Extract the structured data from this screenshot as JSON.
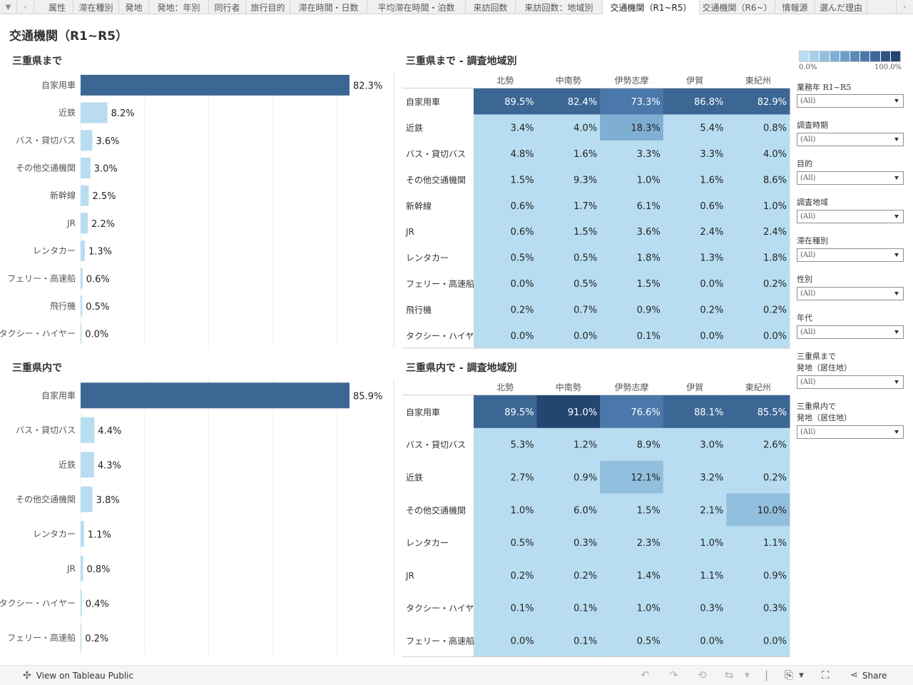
{
  "tabs": [
    "属性",
    "滞在種別",
    "発地",
    "発地：年別",
    "同行者",
    "旅行目的",
    "滞在時間・日数",
    "平均滞在時間・泊数",
    "来訪回数",
    "来訪回数：地域別",
    "交通機関（R1~R5）",
    "交通機関（R6~）",
    "情報源",
    "選んだ理由"
  ],
  "active_tab": 10,
  "page_title": "交通機関（R1~R5）",
  "colors": {
    "bar_high": "#3c6794",
    "bar_low": "#b8ddf1",
    "gradient": [
      "#b8ddf1",
      "#a6cfe7",
      "#92bfdd",
      "#7faed3",
      "#6c9cc7",
      "#5a8aba",
      "#4a78ab",
      "#3c6794",
      "#2e5482",
      "#234570"
    ]
  },
  "legend": {
    "min_label": "0.0%",
    "max_label": "100.0%"
  },
  "filters": [
    {
      "label": "業務年  R1~R5",
      "value": "(All)"
    },
    {
      "label": "調査時期",
      "value": "(All)"
    },
    {
      "label": "目的",
      "value": "(All)"
    },
    {
      "label": "調査地域",
      "value": "(All)"
    },
    {
      "label": "滞在種別",
      "value": "(All)"
    },
    {
      "label": "性別",
      "value": "(All)"
    },
    {
      "label": "年代",
      "value": "(All)"
    },
    {
      "label": "三重県まで\n発地（居住地）",
      "value": "(All)"
    },
    {
      "label": "三重県内で\n発地（居住地）",
      "value": "(All)"
    }
  ],
  "footer": {
    "tableau_link": "View on Tableau Public",
    "share": "Share"
  },
  "chart_data": [
    {
      "type": "bar",
      "title": "三重県まで",
      "categories": [
        "自家用車",
        "近鉄",
        "バス・貸切バス",
        "その他交通機関",
        "新幹線",
        "JR",
        "レンタカー",
        "フェリー・高速船",
        "飛行機",
        "タクシー・ハイヤー"
      ],
      "values": [
        82.3,
        8.2,
        3.6,
        3.0,
        2.5,
        2.2,
        1.3,
        0.6,
        0.5,
        0.0
      ],
      "unit": "%"
    },
    {
      "type": "heatmap",
      "title": "三重県まで - 調査地域別",
      "columns": [
        "北勢",
        "中南勢",
        "伊勢志摩",
        "伊賀",
        "東紀州"
      ],
      "rows": [
        "自家用車",
        "近鉄",
        "バス・貸切バス",
        "その他交通機関",
        "新幹線",
        "JR",
        "レンタカー",
        "フェリー・高速船",
        "飛行機",
        "タクシー・ハイヤー"
      ],
      "values": [
        [
          89.5,
          82.4,
          73.3,
          86.8,
          82.9
        ],
        [
          3.4,
          4.0,
          18.3,
          5.4,
          0.8
        ],
        [
          4.8,
          1.6,
          3.3,
          3.3,
          4.0
        ],
        [
          1.5,
          9.3,
          1.0,
          1.6,
          8.6
        ],
        [
          0.6,
          1.7,
          6.1,
          0.6,
          1.0
        ],
        [
          0.6,
          1.5,
          3.6,
          2.4,
          2.4
        ],
        [
          0.5,
          0.5,
          1.8,
          1.3,
          1.8
        ],
        [
          0.0,
          0.5,
          1.5,
          0.0,
          0.2
        ],
        [
          0.2,
          0.7,
          0.9,
          0.2,
          0.2
        ],
        [
          0.0,
          0.0,
          0.1,
          0.0,
          0.0
        ]
      ],
      "unit": "%"
    },
    {
      "type": "bar",
      "title": "三重県内で",
      "categories": [
        "自家用車",
        "バス・貸切バス",
        "近鉄",
        "その他交通機関",
        "レンタカー",
        "JR",
        "タクシー・ハイヤー",
        "フェリー・高速船"
      ],
      "values": [
        85.9,
        4.4,
        4.3,
        3.8,
        1.1,
        0.8,
        0.4,
        0.2
      ],
      "unit": "%"
    },
    {
      "type": "heatmap",
      "title": "三重県内で - 調査地域別",
      "columns": [
        "北勢",
        "中南勢",
        "伊勢志摩",
        "伊賀",
        "東紀州"
      ],
      "rows": [
        "自家用車",
        "バス・貸切バス",
        "近鉄",
        "その他交通機関",
        "レンタカー",
        "JR",
        "タクシー・ハイヤー",
        "フェリー・高速船"
      ],
      "values": [
        [
          89.5,
          91.0,
          76.6,
          88.1,
          85.5
        ],
        [
          5.3,
          1.2,
          8.9,
          3.0,
          2.6
        ],
        [
          2.7,
          0.9,
          12.1,
          3.2,
          0.2
        ],
        [
          1.0,
          6.0,
          1.5,
          2.1,
          10.0
        ],
        [
          0.5,
          0.3,
          2.3,
          1.0,
          1.1
        ],
        [
          0.2,
          0.2,
          1.4,
          1.1,
          0.9
        ],
        [
          0.1,
          0.1,
          1.0,
          0.3,
          0.3
        ],
        [
          0.0,
          0.1,
          0.5,
          0.0,
          0.0
        ]
      ],
      "unit": "%"
    }
  ]
}
